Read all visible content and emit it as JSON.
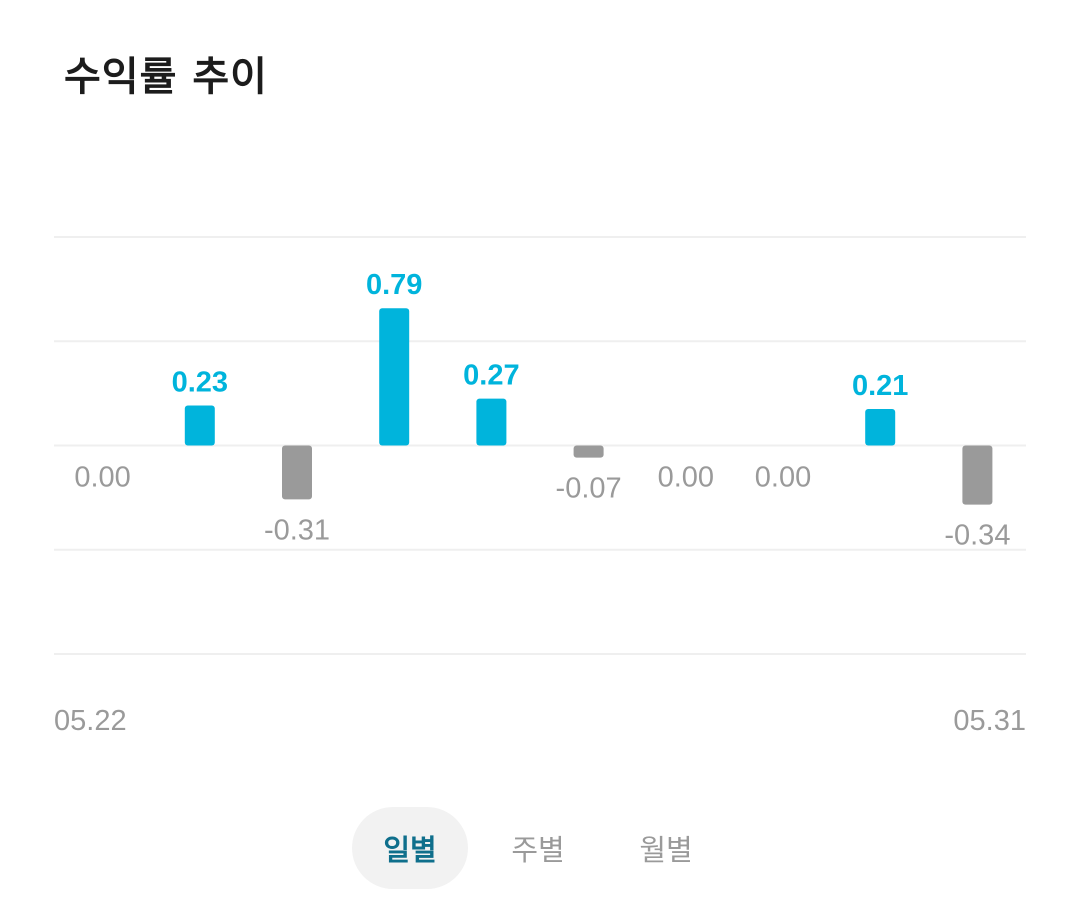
{
  "title": "수익률 추이",
  "chart_data": {
    "type": "bar",
    "values": [
      0.0,
      0.23,
      -0.31,
      0.79,
      0.27,
      -0.07,
      0.0,
      0.0,
      0.21,
      -0.34
    ],
    "data_labels": [
      "0.00",
      "0.23",
      "-0.31",
      "0.79",
      "0.27",
      "-0.07",
      "0.00",
      "0.00",
      "0.21",
      "-0.34"
    ],
    "x_start_label": "05.22",
    "x_end_label": "05.31",
    "ylim": [
      -1.2,
      1.2
    ],
    "grid": true,
    "positive_color": "#00b4dc",
    "negative_color": "#9a9a9a",
    "zero_label_color": "#9a9a9a"
  },
  "tabs": [
    {
      "label": "일별",
      "active": true
    },
    {
      "label": "주별",
      "active": false
    },
    {
      "label": "월별",
      "active": false
    }
  ]
}
